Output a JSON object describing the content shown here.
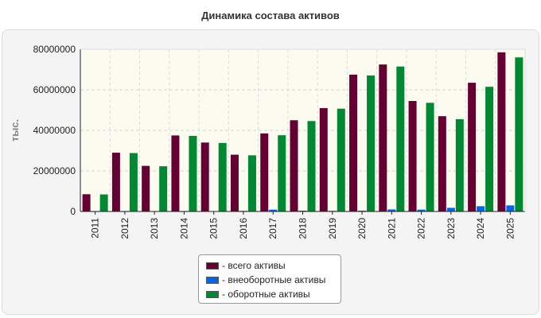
{
  "chart_data": {
    "type": "bar",
    "title": "Динамика состава активов",
    "ylabel": "тыс.",
    "xlabel": "",
    "categories": [
      "2011",
      "2012",
      "2013",
      "2014",
      "2015",
      "2016",
      "2017",
      "2018",
      "2019",
      "2020",
      "2021",
      "2022",
      "2023",
      "2024",
      "2025"
    ],
    "ylim": [
      0,
      80000000
    ],
    "yticks": [
      "0",
      "20000000",
      "40000000",
      "60000000",
      "80000000"
    ],
    "grid": true,
    "legend_position": "bottom-center",
    "series": [
      {
        "name": "- всего активы",
        "color": "#660033",
        "values": [
          8500000,
          29000000,
          22500000,
          37500000,
          34000000,
          28000000,
          38500000,
          45000000,
          51000000,
          67500000,
          72500000,
          54500000,
          47000000,
          63500000,
          78500000
        ]
      },
      {
        "name": "- внеоборотные активы",
        "color": "#0066ee",
        "values": [
          150000,
          150000,
          200000,
          150000,
          200000,
          300000,
          900000,
          400000,
          300000,
          400000,
          1000000,
          900000,
          1800000,
          2600000,
          3000000
        ]
      },
      {
        "name": "- оборотные активы",
        "color": "#008833",
        "values": [
          8400000,
          28800000,
          22300000,
          37300000,
          33800000,
          27700000,
          37600000,
          44600000,
          50700000,
          67100000,
          71500000,
          53600000,
          45500000,
          61500000,
          76000000
        ]
      }
    ]
  }
}
